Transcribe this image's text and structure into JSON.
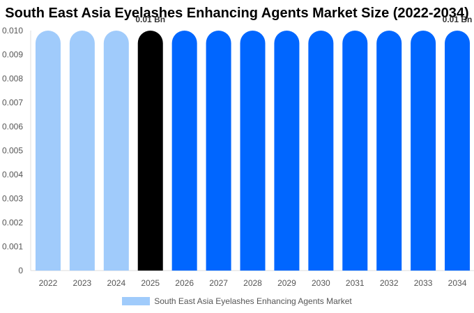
{
  "chart_data": {
    "type": "bar",
    "title": "South East Asia Eyelashes Enhancing Agents Market Size (2022-2034)",
    "categories": [
      "2022",
      "2023",
      "2024",
      "2025",
      "2026",
      "2027",
      "2028",
      "2029",
      "2030",
      "2031",
      "2032",
      "2033",
      "2034"
    ],
    "series": [
      {
        "name": "South East Asia Eyelashes Enhancing Agents Market",
        "values": [
          0.01,
          0.01,
          0.01,
          0.01,
          0.01,
          0.01,
          0.01,
          0.01,
          0.01,
          0.01,
          0.01,
          0.01,
          0.01
        ]
      }
    ],
    "bar_colors": [
      "#a0cbfb",
      "#a0cbfb",
      "#a0cbfb",
      "#000000",
      "#0066ff",
      "#0066ff",
      "#0066ff",
      "#0066ff",
      "#0066ff",
      "#0066ff",
      "#0066ff",
      "#0066ff",
      "#0066ff"
    ],
    "legend_color": "#a0cbfb",
    "data_labels": [
      {
        "category": "2025",
        "text": "0.01 Bn"
      },
      {
        "category": "2034",
        "text": "0.01 Bn"
      }
    ],
    "ylim": [
      0,
      0.01
    ],
    "yticks": [
      "0",
      "0.001",
      "0.002",
      "0.003",
      "0.004",
      "0.005",
      "0.006",
      "0.007",
      "0.008",
      "0.009",
      "0.010"
    ],
    "xlabel": "",
    "ylabel": "",
    "grid": false,
    "legend_position": "bottom"
  }
}
